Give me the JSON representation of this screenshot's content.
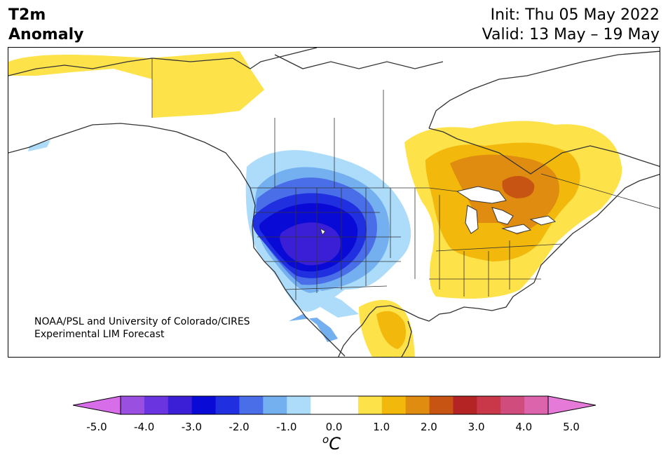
{
  "title": {
    "left_line1": "T2m",
    "left_line2": "Anomaly",
    "right_line1": "Init: Thu 05 May 2022",
    "right_line2": "Valid: 13 May – 19 May"
  },
  "credit": {
    "line1": "NOAA/PSL and University of Colorado/CIRES",
    "line2": "Experimental LIM Forecast"
  },
  "colorbar": {
    "units_base": "C",
    "units_sup": "o",
    "tick_labels": [
      "-5.0",
      "-4.0",
      "-3.0",
      "-2.0",
      "-1.0",
      "0.0",
      "1.0",
      "2.0",
      "3.0",
      "4.0",
      "5.0"
    ],
    "colors": [
      "#d86de9",
      "#9a4fe0",
      "#6a35e0",
      "#3a1fd6",
      "#0a0ad6",
      "#2030e0",
      "#4a6ee8",
      "#74b0f0",
      "#acdcfa",
      "#ffffff",
      "#ffffff",
      "#fde24a",
      "#f2b80b",
      "#e08c10",
      "#c85414",
      "#b42424",
      "#c83848",
      "#d04c7c",
      "#dc64ac",
      "#e67ad8"
    ],
    "extend_low_color": "#d86de9",
    "extend_high_color": "#e67ad8"
  },
  "map": {
    "region": "North America",
    "features": [
      "coastlines",
      "country borders",
      "US state borders"
    ],
    "anomaly_colors": {
      "cold_light": "#acdcfa",
      "cold_mid": "#74b0f0",
      "cold_deep": "#4a6ee8",
      "cold_strong": "#2030e0",
      "cold_core": "#0a0ad6",
      "cold_extreme": "#3a1fd6",
      "warm_light": "#fde24a",
      "warm_mid": "#f2b80b",
      "warm_deep": "#e08c10",
      "warm_strong": "#c85414"
    }
  }
}
